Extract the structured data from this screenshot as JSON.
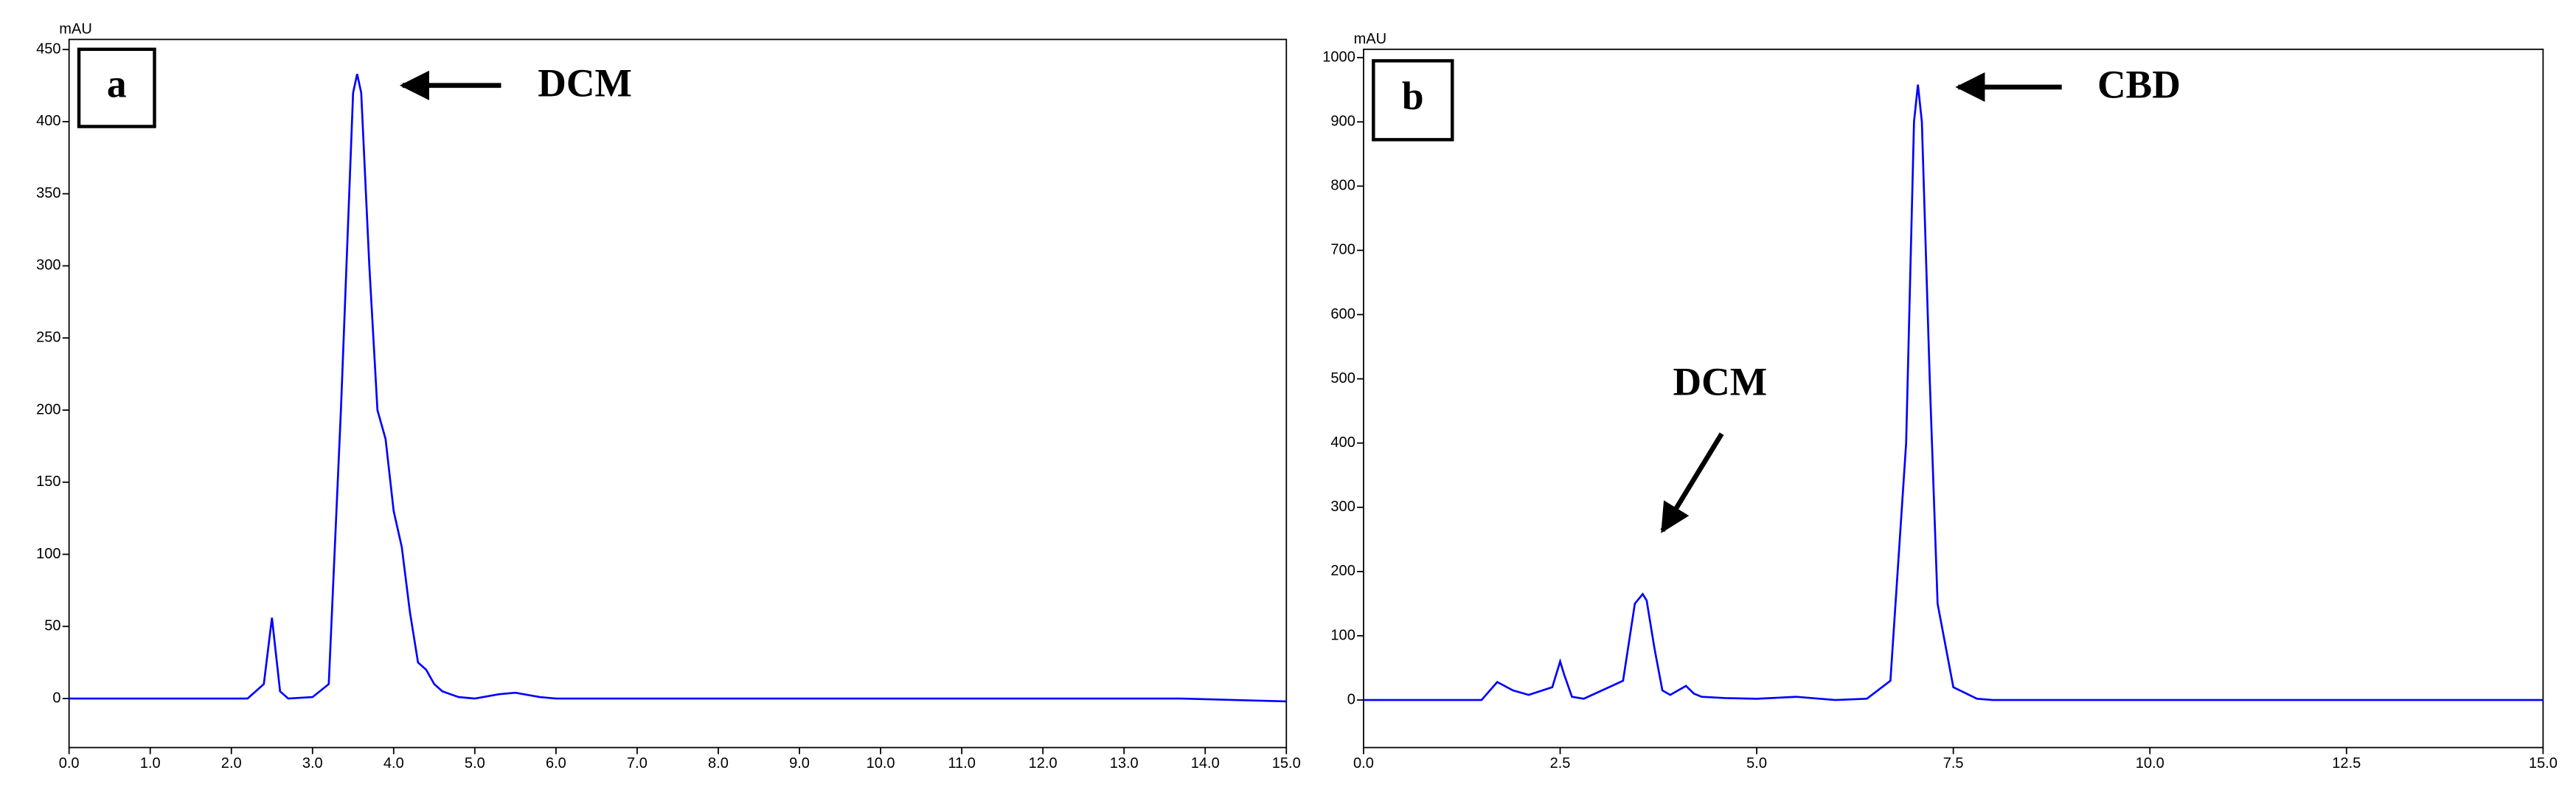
{
  "chart_data": [
    {
      "type": "line",
      "panel_label": "a",
      "y_label": "mAU",
      "annotations": [
        "DCM"
      ],
      "color": "#0000ff",
      "x": [
        0,
        2.2,
        2.4,
        2.5,
        2.6,
        2.7,
        3.0,
        3.2,
        3.35,
        3.5,
        3.55,
        3.6,
        3.7,
        3.8,
        3.9,
        4.0,
        4.1,
        4.2,
        4.3,
        4.4,
        4.5,
        4.6,
        4.8,
        5.0,
        5.3,
        5.5,
        5.8,
        6.0,
        13.7,
        15.0
      ],
      "values": [
        0,
        0,
        10,
        56,
        5,
        0,
        1,
        10,
        200,
        420,
        433,
        420,
        300,
        200,
        180,
        130,
        105,
        60,
        25,
        20,
        10,
        5,
        1,
        0,
        3,
        4,
        1,
        0,
        0,
        -2
      ],
      "xlim": [
        0,
        15
      ],
      "ylim": [
        -34,
        457
      ],
      "xticks": [
        {
          "value": 0,
          "label": "0.0"
        },
        {
          "value": 1,
          "label": "1.0"
        },
        {
          "value": 2,
          "label": "2.0"
        },
        {
          "value": 3,
          "label": "3.0"
        },
        {
          "value": 4,
          "label": "4.0"
        },
        {
          "value": 5,
          "label": "5.0"
        },
        {
          "value": 6,
          "label": "6.0"
        },
        {
          "value": 7,
          "label": "7.0"
        },
        {
          "value": 8,
          "label": "8.0"
        },
        {
          "value": 9,
          "label": "9.0"
        },
        {
          "value": 10,
          "label": "10.0"
        },
        {
          "value": 11,
          "label": "11.0"
        },
        {
          "value": 12,
          "label": "12.0"
        },
        {
          "value": 13,
          "label": "13.0"
        },
        {
          "value": 14,
          "label": "14.0"
        },
        {
          "value": 15,
          "label": "15.0"
        }
      ],
      "yticks": [
        0,
        50,
        100,
        150,
        200,
        250,
        300,
        350,
        400,
        450
      ]
    },
    {
      "type": "line",
      "panel_label": "b",
      "y_label": "mAU",
      "annotations": [
        "CBD",
        "DCM"
      ],
      "color": "#0000ff",
      "x": [
        0,
        1.5,
        1.7,
        1.9,
        2.1,
        2.4,
        2.5,
        2.55,
        2.65,
        2.8,
        3.3,
        3.45,
        3.55,
        3.6,
        3.7,
        3.8,
        3.9,
        4.1,
        4.2,
        4.3,
        4.6,
        5.0,
        5.5,
        6.0,
        6.4,
        6.7,
        6.9,
        7.0,
        7.05,
        7.1,
        7.2,
        7.3,
        7.5,
        7.8,
        8.0,
        15.0
      ],
      "values": [
        0,
        0,
        28,
        15,
        8,
        20,
        60,
        40,
        5,
        2,
        30,
        150,
        165,
        155,
        80,
        15,
        8,
        22,
        10,
        5,
        3,
        2,
        5,
        0,
        2,
        30,
        400,
        900,
        958,
        900,
        500,
        150,
        20,
        2,
        0,
        0
      ],
      "xlim": [
        0,
        15
      ],
      "ylim": [
        -74,
        1013
      ],
      "xticks": [
        {
          "value": 0,
          "label": "0.0"
        },
        {
          "value": 2.5,
          "label": "2.5"
        },
        {
          "value": 5,
          "label": "5.0"
        },
        {
          "value": 7.5,
          "label": "7.5"
        },
        {
          "value": 10,
          "label": "10.0"
        },
        {
          "value": 12.5,
          "label": "12.5"
        },
        {
          "value": 15,
          "label": "15.0"
        }
      ],
      "yticks": [
        0,
        100,
        200,
        300,
        400,
        500,
        600,
        700,
        800,
        900,
        1000
      ]
    }
  ]
}
